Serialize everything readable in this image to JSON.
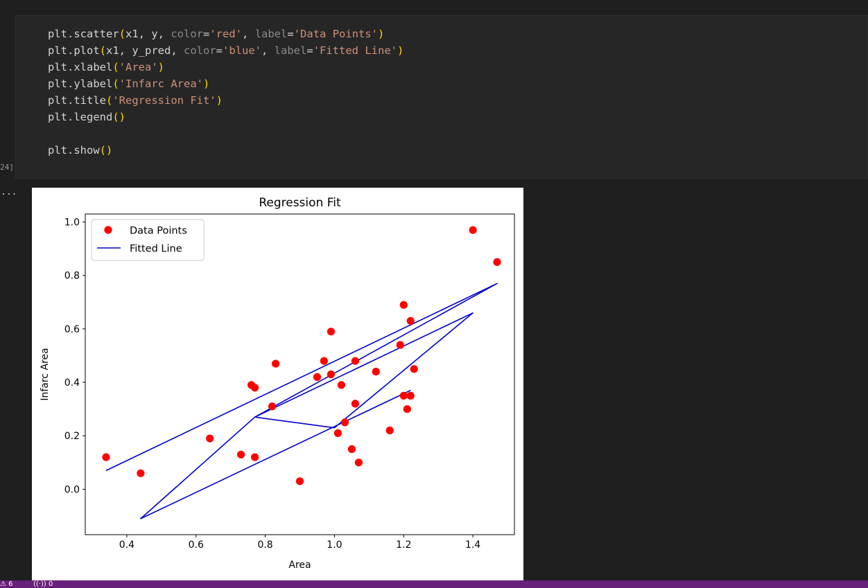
{
  "notebook": {
    "execution_count": "24]",
    "output_marker": "..."
  },
  "code_cell": {
    "lines": [
      [
        {
          "t": "name",
          "v": "plt.scatter"
        },
        {
          "t": "paren",
          "v": "("
        },
        {
          "t": "name",
          "v": "x1, y, "
        },
        {
          "t": "kw",
          "v": "color"
        },
        {
          "t": "punc",
          "v": "="
        },
        {
          "t": "str",
          "v": "'red'"
        },
        {
          "t": "punc",
          "v": ", "
        },
        {
          "t": "kw",
          "v": "label"
        },
        {
          "t": "punc",
          "v": "="
        },
        {
          "t": "str",
          "v": "'Data Points'"
        },
        {
          "t": "paren",
          "v": ")"
        }
      ],
      [
        {
          "t": "name",
          "v": "plt.plot"
        },
        {
          "t": "paren",
          "v": "("
        },
        {
          "t": "name",
          "v": "x1, y_pred, "
        },
        {
          "t": "kw",
          "v": "color"
        },
        {
          "t": "punc",
          "v": "="
        },
        {
          "t": "str",
          "v": "'blue'"
        },
        {
          "t": "punc",
          "v": ", "
        },
        {
          "t": "kw",
          "v": "label"
        },
        {
          "t": "punc",
          "v": "="
        },
        {
          "t": "str",
          "v": "'Fitted Line'"
        },
        {
          "t": "paren",
          "v": ")"
        }
      ],
      [
        {
          "t": "name",
          "v": "plt.xlabel"
        },
        {
          "t": "paren",
          "v": "("
        },
        {
          "t": "str",
          "v": "'Area'"
        },
        {
          "t": "paren",
          "v": ")"
        }
      ],
      [
        {
          "t": "name",
          "v": "plt.ylabel"
        },
        {
          "t": "paren",
          "v": "("
        },
        {
          "t": "str",
          "v": "'Infarc Area'"
        },
        {
          "t": "paren",
          "v": ")"
        }
      ],
      [
        {
          "t": "name",
          "v": "plt.title"
        },
        {
          "t": "paren",
          "v": "("
        },
        {
          "t": "str",
          "v": "'Regression Fit'"
        },
        {
          "t": "paren",
          "v": ")"
        }
      ],
      [
        {
          "t": "name",
          "v": "plt.legend"
        },
        {
          "t": "paren",
          "v": "()"
        }
      ],
      [],
      [
        {
          "t": "name",
          "v": "plt.show"
        },
        {
          "t": "paren",
          "v": "()"
        }
      ]
    ]
  },
  "status_bar": {
    "warnings_icon": "warning-icon",
    "warnings_count": "6",
    "ports_icon": "broadcast-icon",
    "ports_count": "0"
  },
  "chart_data": {
    "type": "scatter",
    "title": "Regression Fit",
    "xlabel": "Area",
    "ylabel": "Infarc Area",
    "xlim": [
      0.28,
      1.52
    ],
    "ylim": [
      -0.17,
      1.03
    ],
    "xticks": [
      0.4,
      0.6,
      0.8,
      1.0,
      1.2,
      1.4
    ],
    "xtick_labels": [
      "0.4",
      "0.6",
      "0.8",
      "1.0",
      "1.2",
      "1.4"
    ],
    "yticks": [
      0.0,
      0.2,
      0.4,
      0.6,
      0.8,
      1.0
    ],
    "ytick_labels": [
      "0.0",
      "0.2",
      "0.4",
      "0.6",
      "0.8",
      "1.0"
    ],
    "grid": false,
    "legend_position": "upper left",
    "series": [
      {
        "name": "Data Points",
        "kind": "scatter",
        "color": "#ff0000",
        "points": [
          [
            0.34,
            0.12
          ],
          [
            0.44,
            0.06
          ],
          [
            0.64,
            0.19
          ],
          [
            0.73,
            0.13
          ],
          [
            0.76,
            0.39
          ],
          [
            0.77,
            0.38
          ],
          [
            0.77,
            0.12
          ],
          [
            0.82,
            0.31
          ],
          [
            0.83,
            0.47
          ],
          [
            0.9,
            0.03
          ],
          [
            0.95,
            0.42
          ],
          [
            0.97,
            0.48
          ],
          [
            0.99,
            0.59
          ],
          [
            0.99,
            0.43
          ],
          [
            1.01,
            0.21
          ],
          [
            1.02,
            0.39
          ],
          [
            1.03,
            0.25
          ],
          [
            1.05,
            0.15
          ],
          [
            1.06,
            0.48
          ],
          [
            1.06,
            0.32
          ],
          [
            1.07,
            0.1
          ],
          [
            1.12,
            0.44
          ],
          [
            1.16,
            0.22
          ],
          [
            1.19,
            0.54
          ],
          [
            1.2,
            0.69
          ],
          [
            1.2,
            0.35
          ],
          [
            1.21,
            0.3
          ],
          [
            1.22,
            0.63
          ],
          [
            1.22,
            0.35
          ],
          [
            1.23,
            0.45
          ],
          [
            1.4,
            0.97
          ],
          [
            1.47,
            0.85
          ]
        ]
      },
      {
        "name": "Fitted Line",
        "kind": "line",
        "color": "#0000cc",
        "points": [
          [
            0.34,
            0.07
          ],
          [
            1.47,
            0.77
          ],
          [
            0.77,
            0.27
          ],
          [
            1.0,
            0.23
          ],
          [
            1.4,
            0.66
          ],
          [
            0.77,
            0.27
          ],
          [
            0.44,
            -0.11
          ],
          [
            1.22,
            0.37
          ]
        ]
      }
    ]
  }
}
